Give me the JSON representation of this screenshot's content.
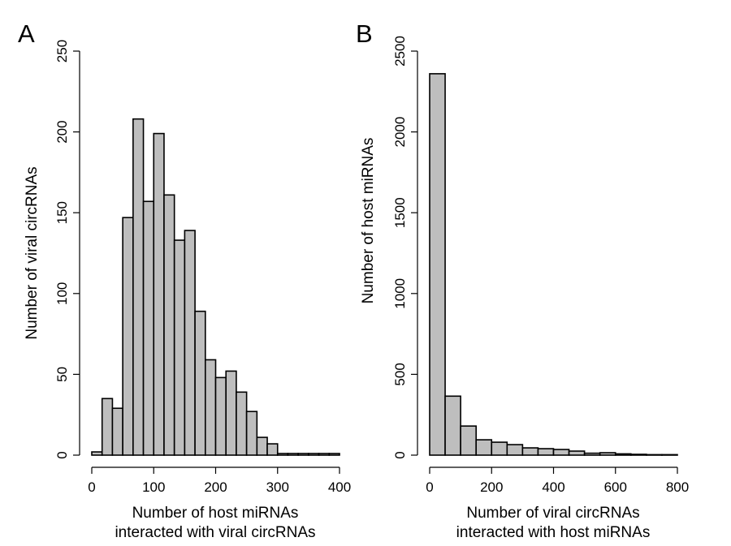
{
  "chart_data": [
    {
      "type": "bar",
      "panel_label": "A",
      "bin_width": 16.666,
      "x": [
        0,
        16.67,
        33.33,
        50,
        66.67,
        83.33,
        100,
        116.67,
        133.33,
        150,
        166.67,
        183.33,
        200,
        216.67,
        233.33,
        250,
        266.67,
        283.33,
        300,
        316.67,
        333.33,
        350,
        366.67,
        383.33
      ],
      "values": [
        2,
        35,
        29,
        147,
        208,
        157,
        199,
        161,
        133,
        139,
        89,
        59,
        48,
        52,
        39,
        27,
        11,
        7,
        1,
        1,
        1,
        1,
        1,
        1
      ],
      "xlabel": [
        "Number of host miRNAs",
        "interacted with viral circRNAs"
      ],
      "ylabel": "Number of viral circRNAs",
      "xlim": [
        0,
        400
      ],
      "ylim": [
        0,
        250
      ],
      "xticks": [
        "0",
        "100",
        "200",
        "300",
        "400"
      ],
      "yticks": [
        "0",
        "50",
        "100",
        "150",
        "200",
        "250"
      ],
      "grid": false
    },
    {
      "type": "bar",
      "panel_label": "B",
      "bin_width": 50,
      "x": [
        0,
        50,
        100,
        150,
        200,
        250,
        300,
        350,
        400,
        450,
        500,
        550,
        600,
        650,
        700,
        750
      ],
      "values": [
        2360,
        365,
        180,
        95,
        80,
        65,
        45,
        40,
        35,
        25,
        12,
        15,
        8,
        5,
        3,
        3
      ],
      "xlabel": [
        "Number of viral circRNAs",
        "interacted with host miRNAs"
      ],
      "ylabel": "Number of host miRNAs",
      "xlim": [
        0,
        800
      ],
      "ylim": [
        0,
        2500
      ],
      "xticks": [
        "0",
        "200",
        "400",
        "600",
        "800"
      ],
      "yticks": [
        "0",
        "500",
        "1000",
        "1500",
        "2000",
        "2500"
      ],
      "grid": false
    }
  ]
}
